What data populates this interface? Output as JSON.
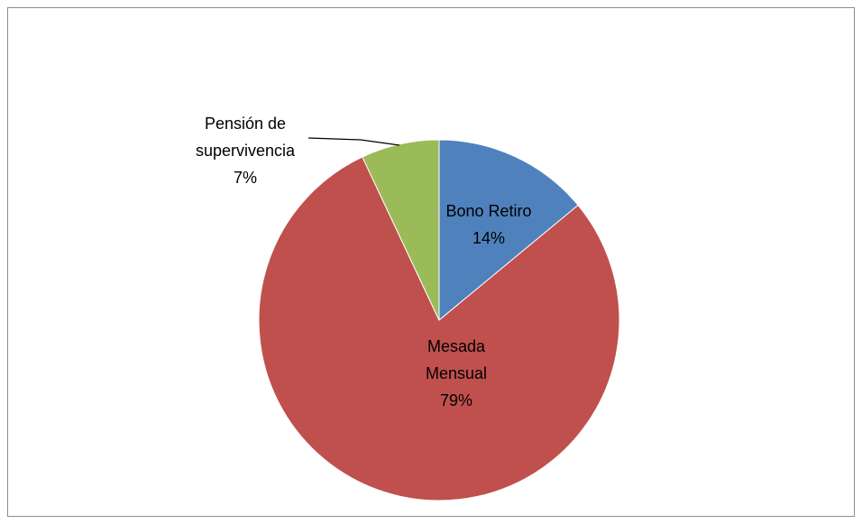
{
  "chart_data": {
    "type": "pie",
    "categories": [
      "Bono Retiro",
      "Mesada Mensual",
      "Pensión de supervivencia"
    ],
    "values": [
      14,
      79,
      7
    ],
    "value_labels": [
      "14%",
      "79%",
      "7%"
    ],
    "colors": [
      "#4f81bd",
      "#c0504d",
      "#9bbb59"
    ]
  }
}
